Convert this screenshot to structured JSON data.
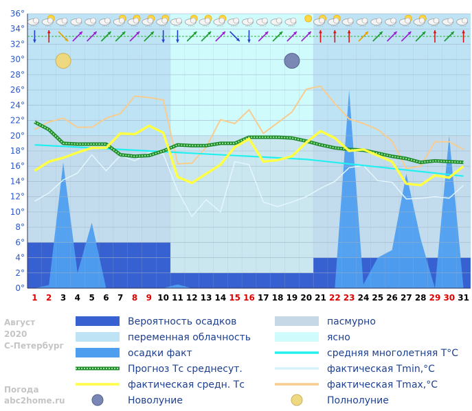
{
  "side": {
    "month": "Август",
    "year": "2020",
    "city": "С-Петербург",
    "site_line1": "Погода",
    "site_line2": "abc2home.ru"
  },
  "legend": [
    {
      "kind": "rect",
      "color": "#3760d0",
      "label": "Вероятность осадков"
    },
    {
      "kind": "rect",
      "color": "#c6d7e6",
      "label": "пасмурно"
    },
    {
      "kind": "rect",
      "color": "#bde3f5",
      "label": "переменная облачность"
    },
    {
      "kind": "rect",
      "color": "#cffbfd",
      "label": "ясно"
    },
    {
      "kind": "rect",
      "color": "#4e9ef0",
      "label": "осадки факт"
    },
    {
      "kind": "line",
      "color": "#22f0f0",
      "label": "средняя многолетняя T°C"
    },
    {
      "kind": "dotted",
      "color": "#1e8a2a",
      "label": "Прогноз Тс среднесут."
    },
    {
      "kind": "line",
      "color": "#d8f2fa",
      "label": "фактическая Tmin,°C"
    },
    {
      "kind": "line",
      "color": "#ffff44",
      "label": "фактическая средн. Тс"
    },
    {
      "kind": "line",
      "color": "#f7cc8e",
      "label": "фактическая Tmax,°C"
    },
    {
      "kind": "newmoon",
      "color": "#7a86b3",
      "label": "Новолуние"
    },
    {
      "kind": "fullmoon",
      "color": "#efd980",
      "label": "Полнолуние"
    }
  ],
  "icons": {
    "weather_row": [
      "cloud-icon",
      "cloud-sun-icon",
      "cloud-icon",
      "cloud-icon",
      "cloud-icon",
      "cloud-icon",
      "cloud-sun-icon",
      "cloud-sun-icon",
      "cloud-sun-icon",
      "cloud-sun-icon",
      "cloud-icon",
      "cloud-sun-icon",
      "cloud-sun-icon",
      "cloud-sun-icon",
      "cloud-icon",
      "cloud-icon",
      "cloud-icon",
      "cloud-icon",
      "cloud-icon",
      "sun-icon",
      "cloud-sun-icon",
      "cloud-sun-icon",
      "cloud-icon",
      "cloud-icon",
      "cloud-icon",
      "cloud-icon",
      "cloud-sun-icon",
      "cloud-sun-icon",
      "cloud-icon",
      "cloud-icon",
      "cloud-icon"
    ],
    "wind_row": [
      "wind-arrow-icon"
    ]
  },
  "chart_data": {
    "type": "area",
    "xlabel": "",
    "ylabel": "",
    "x": [
      1,
      2,
      3,
      4,
      5,
      6,
      7,
      8,
      9,
      10,
      11,
      12,
      13,
      14,
      15,
      16,
      17,
      18,
      19,
      20,
      21,
      22,
      23,
      24,
      25,
      26,
      27,
      28,
      29,
      30,
      31
    ],
    "x_tick_colors": [
      "#dd0000",
      "#dd0000",
      "#000000",
      "#000000",
      "#000000",
      "#000000",
      "#000000",
      "#dd0000",
      "#dd0000",
      "#000000",
      "#000000",
      "#000000",
      "#000000",
      "#000000",
      "#dd0000",
      "#dd0000",
      "#000000",
      "#000000",
      "#000000",
      "#000000",
      "#000000",
      "#dd0000",
      "#dd0000",
      "#000000",
      "#000000",
      "#000000",
      "#000000",
      "#000000",
      "#dd0000",
      "#dd0000",
      "#000000"
    ],
    "ylim": [
      0,
      36
    ],
    "y_ticks": [
      0,
      2,
      4,
      6,
      8,
      10,
      12,
      14,
      16,
      18,
      20,
      22,
      24,
      26,
      28,
      30,
      32,
      34,
      36
    ],
    "y_tick_labels": [
      "0°",
      "2°",
      "4°",
      "6°",
      "8°",
      "10°",
      "12°",
      "14°",
      "16°",
      "18°",
      "20°",
      "22°",
      "24°",
      "26°",
      "28°",
      "30°",
      "32°",
      "34°",
      "36°"
    ],
    "sky_bands": [
      {
        "from": 1,
        "to": 10,
        "state": "переменная облачность",
        "color": "#bde3f5"
      },
      {
        "from": 11,
        "to": 20,
        "state": "ясно",
        "color": "#cffbfd"
      },
      {
        "from": 21,
        "to": 31,
        "state": "переменная облачность",
        "color": "#bde3f5"
      }
    ],
    "overcast_bands": [
      {
        "from": 1,
        "to": 10,
        "top": 20
      },
      {
        "from": 11,
        "to": 20,
        "top": 20
      },
      {
        "from": 21,
        "to": 31,
        "top": 20
      }
    ],
    "precip_probability": [
      {
        "from": 1,
        "to": 10,
        "value": 6
      },
      {
        "from": 11,
        "to": 20,
        "value": 2
      },
      {
        "from": 21,
        "to": 31,
        "value": 4
      }
    ],
    "series": [
      {
        "name": "осадки факт",
        "values": [
          0,
          0.4,
          16.5,
          2,
          8.6,
          0,
          0,
          0,
          0,
          0,
          0.5,
          0,
          0,
          0,
          0,
          0,
          0,
          0,
          0,
          0,
          0,
          0,
          26,
          0.5,
          4,
          5,
          15,
          6.5,
          0,
          20,
          0
        ]
      },
      {
        "name": "средняя многолетняя T°C",
        "values": [
          18.8,
          18.7,
          18.6,
          18.5,
          18.4,
          18.3,
          18.2,
          18.1,
          18,
          17.9,
          17.8,
          17.7,
          17.6,
          17.5,
          17.4,
          17.3,
          17.2,
          17.1,
          17,
          16.9,
          16.7,
          16.5,
          16.3,
          16.1,
          15.9,
          15.7,
          15.5,
          15.3,
          15.1,
          14.9,
          14.7
        ]
      },
      {
        "name": "Прогноз Тс среднесут.",
        "values": [
          21.8,
          20.8,
          19,
          18.9,
          18.9,
          18.9,
          17.5,
          17.3,
          17.4,
          18,
          18.8,
          18.7,
          18.7,
          19,
          19,
          19.8,
          19.8,
          19.8,
          19.7,
          19.3,
          18.8,
          18.4,
          18.2,
          18.1,
          17.7,
          17.3,
          17,
          16.5,
          16.7,
          16.6,
          16.5
        ]
      },
      {
        "name": "фактическая Tmin,°C",
        "values": [
          11.4,
          12.5,
          14.2,
          15.1,
          17.5,
          15.4,
          17.4,
          16.7,
          17.8,
          17.6,
          12.8,
          9.4,
          11.6,
          10,
          16.6,
          16.2,
          11.3,
          10.7,
          11.3,
          12,
          13.1,
          14,
          15.8,
          16.1,
          14.1,
          13.9,
          11.7,
          11.8,
          12,
          11.8,
          13.5
        ]
      },
      {
        "name": "фактическая средн. Тс",
        "values": [
          15.4,
          16.6,
          17.1,
          17.8,
          18.4,
          18.4,
          20.3,
          20.2,
          21.3,
          20.4,
          14.6,
          13.8,
          15,
          16.2,
          18.5,
          19.6,
          16.6,
          16.8,
          17.3,
          19.1,
          20.6,
          19.7,
          18,
          18.2,
          17.4,
          16.6,
          13.7,
          13.5,
          14.8,
          14.5,
          16
        ]
      },
      {
        "name": "фактическая Tmax,°C",
        "values": [
          20.8,
          21.8,
          22.3,
          21.1,
          21.1,
          22.3,
          22.9,
          25.2,
          25,
          24.7,
          16.3,
          16.4,
          18.5,
          22.1,
          21.6,
          23.4,
          20.3,
          21.7,
          23.1,
          26.1,
          26.5,
          24.2,
          22.2,
          21.6,
          20.8,
          19.3,
          15.7,
          16,
          19.2,
          19.2,
          18.2
        ]
      }
    ],
    "moon_phases": [
      {
        "day": 3,
        "y": 30,
        "phase": "Полнолуние"
      },
      {
        "day": 19,
        "y": 30,
        "phase": "Новолуние"
      }
    ],
    "wind_arrows": [
      {
        "day": 1,
        "dir": "down",
        "color": "#1f3fd0"
      },
      {
        "day": 2,
        "dir": "up",
        "color": "#dd1111"
      },
      {
        "day": 3,
        "dir": "se",
        "color": "#e6a000"
      },
      {
        "day": 4,
        "dir": "ne",
        "color": "#9a1cd0"
      },
      {
        "day": 5,
        "dir": "ne",
        "color": "#9a1cd0"
      },
      {
        "day": 6,
        "dir": "ne",
        "color": "#1a9a2a"
      },
      {
        "day": 7,
        "dir": "ne",
        "color": "#1a9a2a"
      },
      {
        "day": 8,
        "dir": "ne",
        "color": "#9a1cd0"
      },
      {
        "day": 9,
        "dir": "ne",
        "color": "#1a9a2a"
      },
      {
        "day": 10,
        "dir": "down",
        "color": "#1f3fd0"
      },
      {
        "day": 11,
        "dir": "down",
        "color": "#1f3fd0"
      },
      {
        "day": 12,
        "dir": "ne",
        "color": "#1a9a2a"
      },
      {
        "day": 13,
        "dir": "ne",
        "color": "#1a9a2a"
      },
      {
        "day": 14,
        "dir": "ne",
        "color": "#9a1cd0"
      },
      {
        "day": 15,
        "dir": "se",
        "color": "#1f3fd0"
      },
      {
        "day": 16,
        "dir": "down",
        "color": "#1f3fd0"
      },
      {
        "day": 17,
        "dir": "ne",
        "color": "#9a1cd0"
      },
      {
        "day": 18,
        "dir": "ne",
        "color": "#1a9a2a"
      },
      {
        "day": 19,
        "dir": "ne",
        "color": "#9a1cd0"
      },
      {
        "day": 20,
        "dir": "ne",
        "color": "#9a1cd0"
      },
      {
        "day": 21,
        "dir": "up",
        "color": "#dd1111"
      },
      {
        "day": 22,
        "dir": "up",
        "color": "#dd1111"
      },
      {
        "day": 23,
        "dir": "up",
        "color": "#dd1111"
      },
      {
        "day": 24,
        "dir": "ne",
        "color": "#e6a000"
      },
      {
        "day": 25,
        "dir": "ne",
        "color": "#1a9a2a"
      },
      {
        "day": 26,
        "dir": "ne",
        "color": "#9a1cd0"
      },
      {
        "day": 27,
        "dir": "ne",
        "color": "#9a1cd0"
      },
      {
        "day": 28,
        "dir": "ne",
        "color": "#1a9a2a"
      },
      {
        "day": 29,
        "dir": "up",
        "color": "#dd1111"
      },
      {
        "day": 30,
        "dir": "ne",
        "color": "#1a9a2a"
      },
      {
        "day": 31,
        "dir": "up",
        "color": "#dd1111"
      }
    ]
  }
}
